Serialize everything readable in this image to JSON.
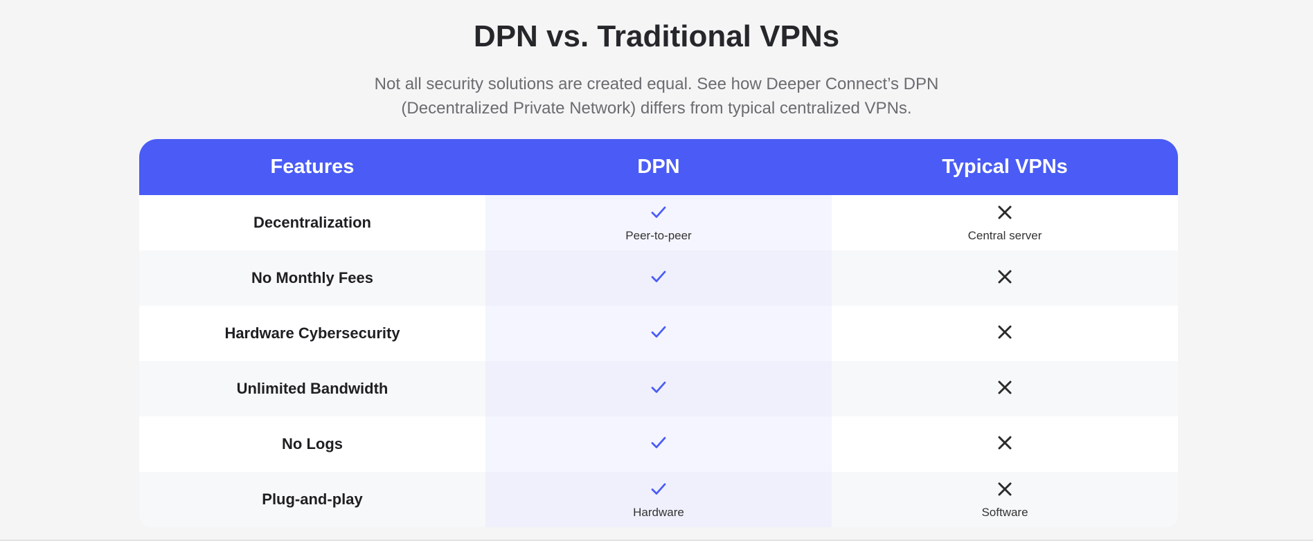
{
  "title": "DPN vs. Traditional VPNs",
  "subtitle_line1": "Not all security solutions are created equal. See how Deeper Connect’s DPN",
  "subtitle_line2": "(Decentralized Private Network) differs from typical centralized VPNs.",
  "headers": [
    "Features",
    "DPN",
    "Typical VPNs"
  ],
  "colors": {
    "header": "#4a5cf5",
    "check": "#4a5cf5",
    "cross": "#2b2b2b"
  },
  "rows": [
    {
      "feature": "Decentralization",
      "dpn": "check-icon",
      "dpn_note": "Peer-to-peer",
      "vpn": "x-icon",
      "vpn_note": "Central server"
    },
    {
      "feature": "No Monthly Fees",
      "dpn": "check-icon",
      "vpn": "x-icon"
    },
    {
      "feature": "Hardware Cybersecurity",
      "dpn": "check-icon",
      "vpn": "x-icon"
    },
    {
      "feature": "Unlimited Bandwidth",
      "dpn": "check-icon",
      "vpn": "x-icon"
    },
    {
      "feature": "No Logs",
      "dpn": "check-icon",
      "vpn": "x-icon"
    },
    {
      "feature": "Plug-and-play",
      "dpn": "check-icon",
      "dpn_note": "Hardware",
      "vpn": "x-icon",
      "vpn_note": "Software"
    }
  ]
}
